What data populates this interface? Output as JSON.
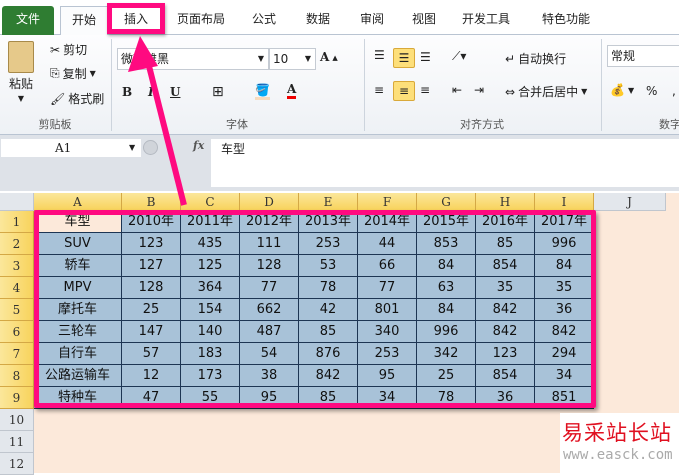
{
  "tabs": [
    "文件",
    "开始",
    "插入",
    "页面布局",
    "公式",
    "数据",
    "审阅",
    "视图",
    "开发工具",
    "特色功能"
  ],
  "clipboard": {
    "paste": "粘贴",
    "cut": "剪切",
    "copy": "复制",
    "format_painter": "格式刷",
    "group": "剪贴板"
  },
  "font": {
    "name": "微软雅黑",
    "size": "10",
    "group": "字体",
    "bold": "B",
    "italic": "I",
    "underline": "U",
    "color_letter": "A"
  },
  "alignment": {
    "wrap": "自动换行",
    "merge": "合并后居中",
    "group": "对齐方式"
  },
  "number": {
    "format": "常规",
    "percent": "%",
    "comma": ",",
    "group": "数字"
  },
  "formula_bar": {
    "name_box": "A1",
    "fx": "fx",
    "content": "车型"
  },
  "columns": [
    "A",
    "B",
    "C",
    "D",
    "E",
    "F",
    "G",
    "H",
    "I",
    "J"
  ],
  "rows": [
    "1",
    "2",
    "3",
    "4",
    "5",
    "6",
    "7",
    "8",
    "9",
    "10",
    "11",
    "12"
  ],
  "table": {
    "header": [
      "车型",
      "2010年",
      "2011年",
      "2012年",
      "2013年",
      "2014年",
      "2015年",
      "2016年",
      "2017年"
    ],
    "rows": [
      [
        "SUV",
        "123",
        "435",
        "111",
        "253",
        "44",
        "853",
        "85",
        "996"
      ],
      [
        "轿车",
        "127",
        "125",
        "128",
        "53",
        "66",
        "84",
        "854",
        "84"
      ],
      [
        "MPV",
        "128",
        "364",
        "77",
        "78",
        "77",
        "63",
        "35",
        "35"
      ],
      [
        "摩托车",
        "25",
        "154",
        "662",
        "42",
        "801",
        "84",
        "842",
        "36"
      ],
      [
        "三轮车",
        "147",
        "140",
        "487",
        "85",
        "340",
        "996",
        "842",
        "842"
      ],
      [
        "自行车",
        "57",
        "183",
        "54",
        "876",
        "253",
        "342",
        "123",
        "294"
      ],
      [
        "公路运输车",
        "12",
        "173",
        "38",
        "842",
        "95",
        "25",
        "854",
        "34"
      ],
      [
        "特种车",
        "47",
        "55",
        "95",
        "85",
        "34",
        "78",
        "36",
        "851"
      ]
    ]
  },
  "watermark": {
    "cn": "易采站长站",
    "url": "www.easck.com"
  },
  "colors": {
    "highlight": "#ff0a80",
    "selection": "#a8c2d8",
    "sheet_bg": "#fce9da"
  }
}
